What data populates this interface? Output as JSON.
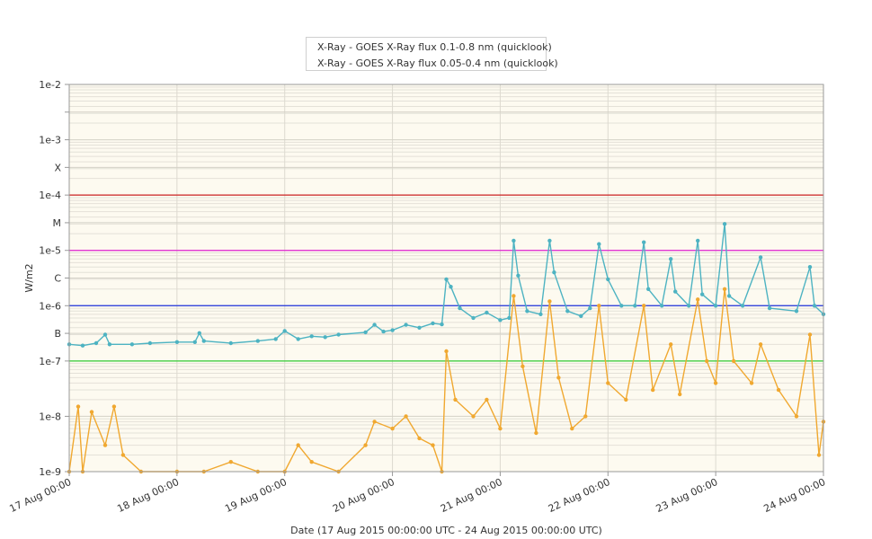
{
  "colors": {
    "series_hard": "#4db3c2",
    "series_soft": "#f0a830",
    "plot_bg": "#fdfaf0",
    "X_line": "#cc2222",
    "M_line": "#e022d0",
    "C_line": "#2233dd",
    "B_line": "#33cc33"
  },
  "legend": {
    "items": [
      {
        "label": "X-Ray - GOES X-Ray flux 0.1-0.8 nm (quicklook)",
        "color": "#4db3c2"
      },
      {
        "label": "X-Ray - GOES X-Ray flux 0.05-0.4 nm (quicklook)",
        "color": "#f0a830"
      }
    ]
  },
  "chart_data": {
    "type": "line",
    "ylabel": "W/m2",
    "xlabel": "Date (17 Aug 2015 00:00:00 UTC - 24 Aug 2015 00:00:00 UTC)",
    "y_scale": "log",
    "ylim": [
      1e-09,
      0.01
    ],
    "xlim": [
      "2015-08-17 00:00",
      "2015-08-24 00:00"
    ],
    "y_ticks": [
      {
        "value": 0.01,
        "label": "1e-2"
      },
      {
        "value": 0.003162,
        "label": ""
      },
      {
        "value": 0.001,
        "label": "1e-3"
      },
      {
        "value": 0.0003162,
        "label": "X"
      },
      {
        "value": 0.0001,
        "label": "1e-4"
      },
      {
        "value": 3.162e-05,
        "label": "M"
      },
      {
        "value": 1e-05,
        "label": "1e-5"
      },
      {
        "value": 3.162e-06,
        "label": "C"
      },
      {
        "value": 1e-06,
        "label": "1e-6"
      },
      {
        "value": 3.162e-07,
        "label": "B"
      },
      {
        "value": 1e-07,
        "label": "1e-7"
      },
      {
        "value": 1e-08,
        "label": "1e-8"
      },
      {
        "value": 1e-09,
        "label": "1e-9"
      }
    ],
    "x_ticks": [
      {
        "x": "2015-08-17 00:00",
        "label": "17 Aug 00:00"
      },
      {
        "x": "2015-08-18 00:00",
        "label": "18 Aug 00:00"
      },
      {
        "x": "2015-08-19 00:00",
        "label": "19 Aug 00:00"
      },
      {
        "x": "2015-08-20 00:00",
        "label": "20 Aug 00:00"
      },
      {
        "x": "2015-08-21 00:00",
        "label": "21 Aug 00:00"
      },
      {
        "x": "2015-08-22 00:00",
        "label": "22 Aug 00:00"
      },
      {
        "x": "2015-08-23 00:00",
        "label": "23 Aug 00:00"
      },
      {
        "x": "2015-08-24 00:00",
        "label": "24 Aug 00:00"
      }
    ],
    "threshold_lines": [
      {
        "value": 0.0001,
        "color": "#cc2222"
      },
      {
        "value": 1e-05,
        "color": "#e022d0"
      },
      {
        "value": 1e-06,
        "color": "#2233dd"
      },
      {
        "value": 1e-07,
        "color": "#33cc33"
      }
    ],
    "series": [
      {
        "name": "X-Ray - GOES X-Ray flux 0.1-0.8 nm (quicklook)",
        "color": "#4db3c2",
        "points": [
          [
            "2015-08-17 00:00",
            2e-07
          ],
          [
            "2015-08-17 03:00",
            1.9e-07
          ],
          [
            "2015-08-17 06:00",
            2.1e-07
          ],
          [
            "2015-08-17 08:00",
            3e-07
          ],
          [
            "2015-08-17 09:00",
            2e-07
          ],
          [
            "2015-08-17 14:00",
            2e-07
          ],
          [
            "2015-08-17 18:00",
            2.1e-07
          ],
          [
            "2015-08-18 00:00",
            2.2e-07
          ],
          [
            "2015-08-18 04:00",
            2.2e-07
          ],
          [
            "2015-08-18 05:00",
            3.2e-07
          ],
          [
            "2015-08-18 06:00",
            2.3e-07
          ],
          [
            "2015-08-18 12:00",
            2.1e-07
          ],
          [
            "2015-08-18 18:00",
            2.3e-07
          ],
          [
            "2015-08-18 22:00",
            2.5e-07
          ],
          [
            "2015-08-19 00:00",
            3.5e-07
          ],
          [
            "2015-08-19 03:00",
            2.5e-07
          ],
          [
            "2015-08-19 06:00",
            2.8e-07
          ],
          [
            "2015-08-19 09:00",
            2.7e-07
          ],
          [
            "2015-08-19 12:00",
            3e-07
          ],
          [
            "2015-08-19 18:00",
            3.3e-07
          ],
          [
            "2015-08-19 20:00",
            4.5e-07
          ],
          [
            "2015-08-19 22:00",
            3.4e-07
          ],
          [
            "2015-08-20 00:00",
            3.6e-07
          ],
          [
            "2015-08-20 03:00",
            4.5e-07
          ],
          [
            "2015-08-20 06:00",
            4e-07
          ],
          [
            "2015-08-20 09:00",
            4.8e-07
          ],
          [
            "2015-08-20 11:00",
            4.6e-07
          ],
          [
            "2015-08-20 12:00",
            3e-06
          ],
          [
            "2015-08-20 13:00",
            2.2e-06
          ],
          [
            "2015-08-20 15:00",
            9e-07
          ],
          [
            "2015-08-20 18:00",
            6e-07
          ],
          [
            "2015-08-20 21:00",
            7.5e-07
          ],
          [
            "2015-08-21 00:00",
            5.5e-07
          ],
          [
            "2015-08-21 02:00",
            6e-07
          ],
          [
            "2015-08-21 03:00",
            1.5e-05
          ],
          [
            "2015-08-21 04:00",
            3.5e-06
          ],
          [
            "2015-08-21 06:00",
            8e-07
          ],
          [
            "2015-08-21 09:00",
            7e-07
          ],
          [
            "2015-08-21 11:00",
            1.5e-05
          ],
          [
            "2015-08-21 12:00",
            4e-06
          ],
          [
            "2015-08-21 15:00",
            8e-07
          ],
          [
            "2015-08-21 18:00",
            6.5e-07
          ],
          [
            "2015-08-21 20:00",
            9e-07
          ],
          [
            "2015-08-21 22:00",
            1.3e-05
          ],
          [
            "2015-08-22 00:00",
            3e-06
          ],
          [
            "2015-08-22 03:00",
            1e-06
          ],
          [
            "2015-08-22 06:00",
            1e-06
          ],
          [
            "2015-08-22 08:00",
            1.4e-05
          ],
          [
            "2015-08-22 09:00",
            2e-06
          ],
          [
            "2015-08-22 12:00",
            1e-06
          ],
          [
            "2015-08-22 14:00",
            7e-06
          ],
          [
            "2015-08-22 15:00",
            1.8e-06
          ],
          [
            "2015-08-22 18:00",
            1e-06
          ],
          [
            "2015-08-22 20:00",
            1.5e-05
          ],
          [
            "2015-08-22 21:00",
            1.6e-06
          ],
          [
            "2015-08-23 00:00",
            1e-06
          ],
          [
            "2015-08-23 02:00",
            3e-05
          ],
          [
            "2015-08-23 03:00",
            1.5e-06
          ],
          [
            "2015-08-23 06:00",
            1e-06
          ],
          [
            "2015-08-23 10:00",
            7.5e-06
          ],
          [
            "2015-08-23 12:00",
            9e-07
          ],
          [
            "2015-08-23 18:00",
            8e-07
          ],
          [
            "2015-08-23 21:00",
            5e-06
          ],
          [
            "2015-08-23 22:00",
            1e-06
          ],
          [
            "2015-08-24 00:00",
            7e-07
          ]
        ]
      },
      {
        "name": "X-Ray - GOES X-Ray flux 0.05-0.4 nm (quicklook)",
        "color": "#f0a830",
        "points": [
          [
            "2015-08-17 00:00",
            1e-09
          ],
          [
            "2015-08-17 02:00",
            1.5e-08
          ],
          [
            "2015-08-17 03:00",
            1e-09
          ],
          [
            "2015-08-17 05:00",
            1.2e-08
          ],
          [
            "2015-08-17 08:00",
            3e-09
          ],
          [
            "2015-08-17 10:00",
            1.5e-08
          ],
          [
            "2015-08-17 12:00",
            2e-09
          ],
          [
            "2015-08-17 16:00",
            1e-09
          ],
          [
            "2015-08-18 00:00",
            1e-09
          ],
          [
            "2015-08-18 06:00",
            1e-09
          ],
          [
            "2015-08-18 12:00",
            1.5e-09
          ],
          [
            "2015-08-18 18:00",
            1e-09
          ],
          [
            "2015-08-19 00:00",
            1e-09
          ],
          [
            "2015-08-19 03:00",
            3e-09
          ],
          [
            "2015-08-19 06:00",
            1.5e-09
          ],
          [
            "2015-08-19 12:00",
            1e-09
          ],
          [
            "2015-08-19 18:00",
            3e-09
          ],
          [
            "2015-08-19 20:00",
            8e-09
          ],
          [
            "2015-08-20 00:00",
            6e-09
          ],
          [
            "2015-08-20 03:00",
            1e-08
          ],
          [
            "2015-08-20 06:00",
            4e-09
          ],
          [
            "2015-08-20 09:00",
            3e-09
          ],
          [
            "2015-08-20 11:00",
            1e-09
          ],
          [
            "2015-08-20 12:00",
            1.5e-07
          ],
          [
            "2015-08-20 14:00",
            2e-08
          ],
          [
            "2015-08-20 18:00",
            1e-08
          ],
          [
            "2015-08-20 21:00",
            2e-08
          ],
          [
            "2015-08-21 00:00",
            6e-09
          ],
          [
            "2015-08-21 03:00",
            1.5e-06
          ],
          [
            "2015-08-21 05:00",
            8e-08
          ],
          [
            "2015-08-21 08:00",
            5e-09
          ],
          [
            "2015-08-21 11:00",
            1.2e-06
          ],
          [
            "2015-08-21 13:00",
            5e-08
          ],
          [
            "2015-08-21 16:00",
            6e-09
          ],
          [
            "2015-08-21 19:00",
            1e-08
          ],
          [
            "2015-08-21 22:00",
            1e-06
          ],
          [
            "2015-08-22 00:00",
            4e-08
          ],
          [
            "2015-08-22 04:00",
            2e-08
          ],
          [
            "2015-08-22 08:00",
            1e-06
          ],
          [
            "2015-08-22 10:00",
            3e-08
          ],
          [
            "2015-08-22 14:00",
            2e-07
          ],
          [
            "2015-08-22 16:00",
            2.5e-08
          ],
          [
            "2015-08-22 20:00",
            1.3e-06
          ],
          [
            "2015-08-22 22:00",
            1e-07
          ],
          [
            "2015-08-23 00:00",
            4e-08
          ],
          [
            "2015-08-23 02:00",
            2e-06
          ],
          [
            "2015-08-23 04:00",
            1e-07
          ],
          [
            "2015-08-23 08:00",
            4e-08
          ],
          [
            "2015-08-23 10:00",
            2e-07
          ],
          [
            "2015-08-23 14:00",
            3e-08
          ],
          [
            "2015-08-23 18:00",
            1e-08
          ],
          [
            "2015-08-23 21:00",
            3e-07
          ],
          [
            "2015-08-23 23:00",
            2e-09
          ],
          [
            "2015-08-24 00:00",
            8e-09
          ]
        ]
      }
    ]
  }
}
